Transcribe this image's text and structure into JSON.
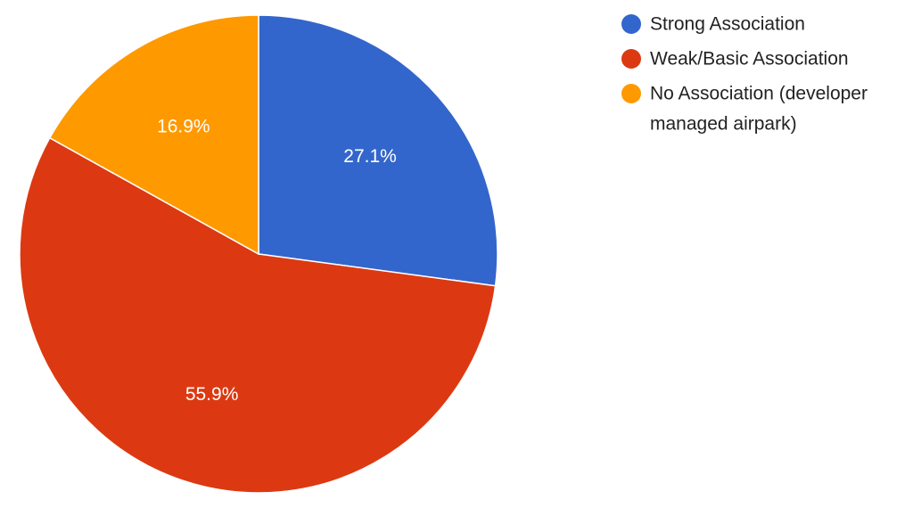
{
  "chart_data": {
    "type": "pie",
    "title": "",
    "legend_position": "top-right",
    "slices": [
      {
        "label": "Strong Association",
        "legend_lines": [
          "Strong Association"
        ],
        "value": 27.1,
        "display": "27.1%",
        "color": "#3366cc"
      },
      {
        "label": "Weak/Basic Association",
        "legend_lines": [
          "Weak/Basic Association"
        ],
        "value": 55.9,
        "display": "55.9%",
        "color": "#dc3912"
      },
      {
        "label": "No Association (developer managed airpark)",
        "legend_lines": [
          "No Association (developer",
          "managed airpark)"
        ],
        "value": 16.9,
        "display": "16.9%",
        "color": "#ff9900"
      }
    ]
  }
}
